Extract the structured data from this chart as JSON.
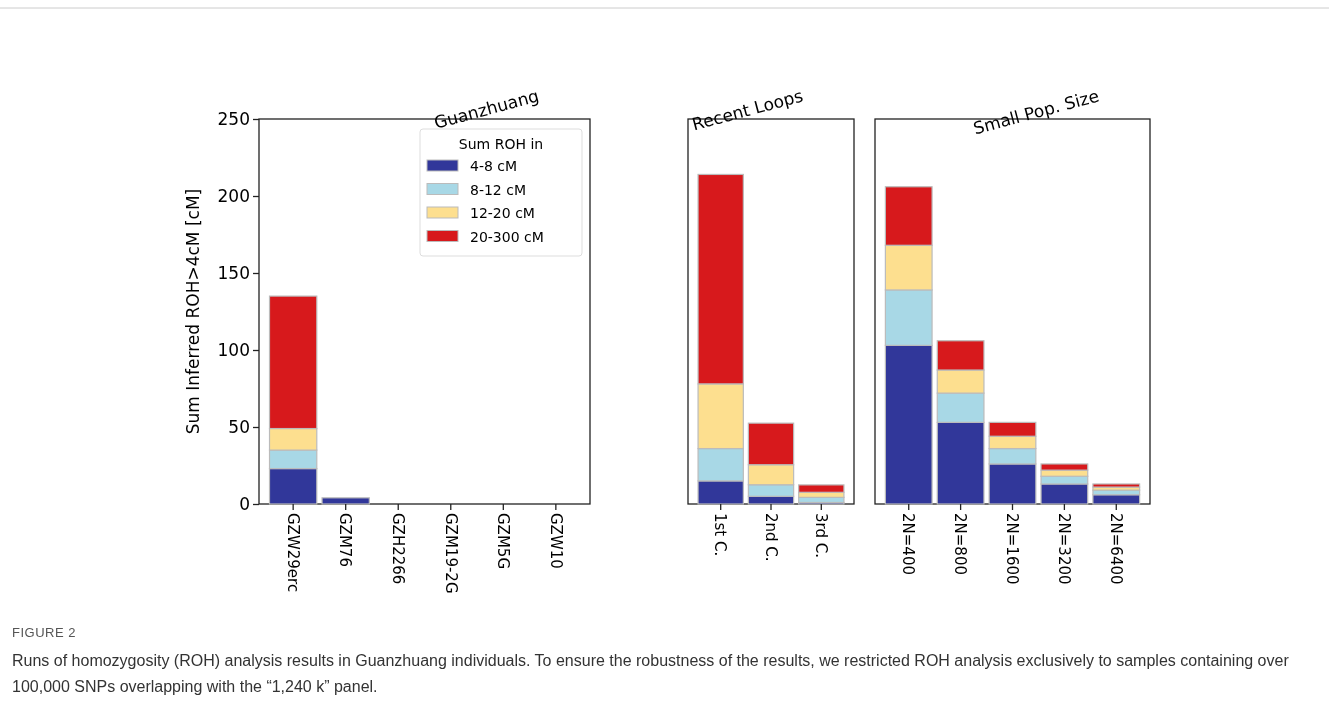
{
  "chart_data": [
    {
      "type": "bar",
      "title": "Guanzhuang",
      "ylabel": "Sum Inferred ROH>4cM [cM]",
      "categories": [
        "GZW29erc",
        "GZM76",
        "GZH2266",
        "GZM19-2G",
        "GZM5G",
        "GZW10"
      ],
      "stacked": true,
      "ylim": [
        0,
        250
      ],
      "yticks": [
        0,
        50,
        100,
        150,
        200,
        250
      ],
      "legend": "top right",
      "legend_title": "Sum ROH in",
      "series": [
        {
          "name": "4-8 cM",
          "color": "#31379a",
          "values": [
            23,
            4,
            0,
            0,
            0,
            0
          ]
        },
        {
          "name": "8-12 cM",
          "color": "#a8d8e6",
          "values": [
            12,
            0,
            0,
            0,
            0,
            0
          ]
        },
        {
          "name": "12-20 cM",
          "color": "#fddf8f",
          "values": [
            14,
            0,
            0,
            0,
            0,
            0
          ]
        },
        {
          "name": "20-300 cM",
          "color": "#d7191c",
          "values": [
            86,
            0,
            0,
            0,
            0,
            0
          ]
        }
      ],
      "annotations": [
        "FIGURE 2",
        "Runs of homozygosity (ROH) analysis results in Guanzhuang individuals. To ensure the robustness of the results, we restricted ROH analysis exclusively to samples containing over 100,000 SNPs overlapping with the “1,240 k” panel."
      ]
    },
    {
      "type": "bar",
      "title": "Recent Loops",
      "categories": [
        "1st C.",
        "2nd C.",
        "3rd C."
      ],
      "stacked": true,
      "ylim": [
        0,
        250
      ],
      "tick_labels": "x",
      "series": [
        {
          "color": "#31379a",
          "values": [
            15,
            5,
            1
          ]
        },
        {
          "color": "#a8d8e6",
          "values": [
            21,
            7.5,
            3.3
          ]
        },
        {
          "color": "#fddf8f",
          "values": [
            42,
            13,
            3.3
          ]
        },
        {
          "color": "#d7191c",
          "values": [
            136,
            27,
            4.8
          ]
        }
      ]
    },
    {
      "type": "bar",
      "title": "Small Pop. Size",
      "categories": [
        "2N=400",
        "2N=800",
        "2N=1600",
        "2N=3200",
        "2N=6400"
      ],
      "stacked": true,
      "ylim": [
        0,
        250
      ],
      "tick_labels": "x",
      "series": [
        {
          "color": "#31379a",
          "values": [
            103,
            53,
            26,
            13,
            6
          ]
        },
        {
          "color": "#a8d8e6",
          "values": [
            36,
            19,
            10,
            5,
            3
          ]
        },
        {
          "color": "#fddf8f",
          "values": [
            29,
            15,
            8,
            4,
            2
          ]
        },
        {
          "color": "#d7191c",
          "values": [
            38,
            19,
            9,
            4,
            2
          ]
        }
      ]
    }
  ]
}
